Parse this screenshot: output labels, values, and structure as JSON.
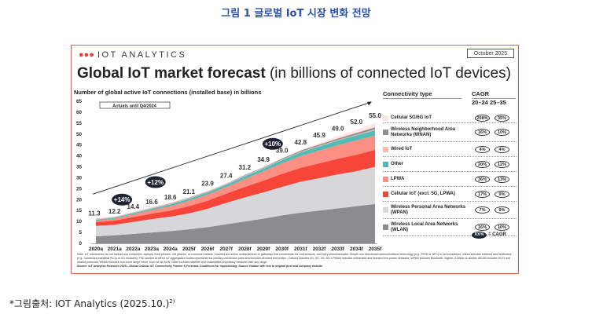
{
  "figure_title": "그림 1 글로벌 IoT 시장 변화 전망",
  "logo": "IOT ANALYTICS",
  "date_badge": "October 2025",
  "headline_bold": "Global IoT market forecast",
  "headline_rest": " (in billions of connected IoT devices)",
  "actuals_label": "Actuals until Q4/2024",
  "legend": {
    "header": "Connectivity type",
    "cagr": "CAGR",
    "periods": "20–24  25–35",
    "key_pill": "XX%",
    "key_label": "= CAGR",
    "items": [
      {
        "label": "Cellular 5G/6G IoT",
        "color": "#fde6e4",
        "cagr_20_24": "208%",
        "cagr_25_35": "35%"
      },
      {
        "label": "Wireless Neighborhood Area Networks (WNAN)",
        "color": "#8e8e93",
        "cagr_20_24": "16%",
        "cagr_25_35": "10%"
      },
      {
        "label": "Wired IoT",
        "color": "#fbb7b0",
        "cagr_20_24": "4%",
        "cagr_25_35": "4%"
      },
      {
        "label": "Other",
        "color": "#4dbdb6",
        "cagr_20_24": "20%",
        "cagr_25_35": "12%"
      },
      {
        "label": "LPWA",
        "color": "#fb8f84",
        "cagr_20_24": "36%",
        "cagr_25_35": "13%"
      },
      {
        "label": "Cellular IoT (excl. 5G, LPWA)",
        "color": "#f7453a",
        "cagr_20_24": "17%",
        "cagr_25_35": "9%"
      },
      {
        "label": "Wireless Personal Area Networks (WPAN)",
        "color": "#d7d7d9",
        "cagr_20_24": "7%",
        "cagr_25_35": "9%"
      },
      {
        "label": "Wireless Local Area Networks (WLAN)",
        "color": "#8b8b90",
        "cagr_20_24": "16%",
        "cagr_25_35": "10%"
      }
    ]
  },
  "notes": "Note: IoT connections do not include any computers, laptops, fixed phones, cell phones, or consumer tablets. Counted are active nodes/devices or gateways that concentrate the end-sensors, not every sensor/actuator. Simple one-directional communications technology (e.g., RFID or NFC) is not considered. Wired includes ethernet and fieldbuses (e.g., connected industrial PLCs or I/O modules); The number of wired IoT aggregation nodes represents the primary connection point and includes all wired end nodes.; Cellular includes 2G, 3G, 4G, 5G; LPWAN includes unlicensed and licensed low-power networks; WPAN includes Bluetooth, Zigbee, Z-Wave or similar; WLAN includes Wi-Fi and related protocols; WNAN includes non-short range mesh, such as Wi-SUN; Other includes satellite and unclassified proprietary networks with any range.",
  "source": "Source: IoT Analytics Research 2025—Global Cellular IoT Connectivity Tracker & Forecast. Conditions for republishing: Source citation with link to original post and company website.",
  "caption": "*그림출처: IOT Analytics (2025.10.)",
  "caption_sup": "2)",
  "chart_data": {
    "type": "area",
    "stacked": true,
    "title": "Number of global active IoT connections (installed base) in billions",
    "categories": [
      "2020a",
      "2021a",
      "2022a",
      "2023a",
      "2024a",
      "2025f",
      "2026f",
      "2027f",
      "2028f",
      "2029f",
      "2030f",
      "2031f",
      "2032f",
      "2033f",
      "2034f",
      "2035f"
    ],
    "ylim": [
      0,
      65
    ],
    "yticks": [
      0,
      5,
      10,
      15,
      20,
      25,
      30,
      35,
      40,
      45,
      50,
      55,
      60,
      65
    ],
    "grid": false,
    "legend": "right",
    "totals": [
      "11.3",
      "12.2",
      "14.4",
      "16.6",
      "18.6",
      "21.1",
      "23.9",
      "27.4",
      "31.2",
      "34.9",
      "39.0",
      "42.8",
      "45.9",
      "49.0",
      "52.0",
      "55.0"
    ],
    "series": [
      {
        "name": "Wireless Local Area Networks (WLAN)",
        "color": "#8b8b90",
        "values": [
          3.2,
          3.7,
          4.3,
          5,
          5.6,
          6.4,
          7.4,
          8.7,
          10,
          11.3,
          12.8,
          14,
          15,
          16,
          17,
          18
        ]
      },
      {
        "name": "Wireless Personal Area Networks (WPAN)",
        "color": "#d7d7d9",
        "values": [
          4.8,
          4.8,
          5.5,
          6.1,
          6.6,
          7.3,
          8.4,
          9.8,
          11,
          12,
          13,
          14.2,
          14.8,
          15.5,
          16,
          17
        ]
      },
      {
        "name": "Cellular IoT (excl. 5G, LPWA)",
        "color": "#f7453a",
        "values": [
          1.7,
          1.9,
          2.2,
          2.5,
          2.8,
          3.3,
          3.7,
          4.2,
          4.8,
          5.4,
          6,
          6.3,
          6.8,
          7.2,
          7.5,
          7.8
        ]
      },
      {
        "name": "LPWA",
        "color": "#fb8f84",
        "values": [
          0.6,
          0.8,
          1.2,
          1.6,
          2,
          2.5,
          2.8,
          3,
          3.6,
          4.2,
          4.8,
          5.4,
          5.8,
          6.2,
          6.6,
          6.5
        ]
      },
      {
        "name": "Other",
        "color": "#4dbdb6",
        "values": [
          0.5,
          0.5,
          0.6,
          0.7,
          0.8,
          0.9,
          1,
          1.1,
          1.2,
          1.3,
          1.5,
          1.7,
          1.9,
          2.1,
          2.3,
          2.4
        ]
      },
      {
        "name": "Wired IoT",
        "color": "#fbb7b0",
        "values": [
          0.3,
          0.3,
          0.3,
          0.3,
          0.3,
          0.3,
          0.3,
          0.3,
          0.3,
          0.3,
          0.3,
          0.3,
          0.3,
          0.3,
          0.3,
          0.5
        ]
      },
      {
        "name": "Wireless Neighborhood Area Networks (WNAN)",
        "color": "#8e8e93",
        "values": [
          0.1,
          0.1,
          0.1,
          0.1,
          0.2,
          0.2,
          0.2,
          0.2,
          0.3,
          0.3,
          0.4,
          0.5,
          0.6,
          0.7,
          0.8,
          0.9
        ]
      },
      {
        "name": "Cellular 5G/6G IoT",
        "color": "#fde6e4",
        "values": [
          0.1,
          0.1,
          0.2,
          0.3,
          0.3,
          0.2,
          0.1,
          0.1,
          0,
          0.1,
          0.2,
          0.4,
          0.7,
          1.0,
          1.5,
          1.9
        ]
      }
    ],
    "trend_annotations": [
      {
        "label": "+14%",
        "x": 1.4,
        "y": 20
      },
      {
        "label": "+12%",
        "x": 3.2,
        "y": 28
      },
      {
        "label": "+10%",
        "x": 9.5,
        "y": 45.5
      }
    ]
  }
}
